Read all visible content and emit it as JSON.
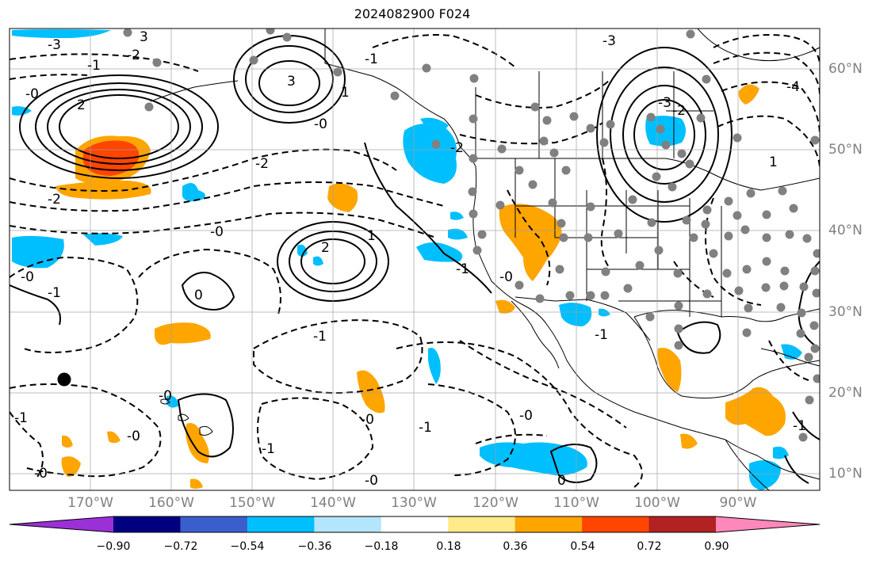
{
  "title": "2024082900 F024",
  "lon_labels": [
    "170°W",
    "160°W",
    "150°W",
    "140°W",
    "130°W",
    "120°W",
    "110°W",
    "100°W",
    "90°W"
  ],
  "lat_labels": [
    "60°N",
    "50°N",
    "40°N",
    "30°N",
    "20°N",
    "10°N"
  ],
  "colorbar": {
    "ticks": [
      "−0.90",
      "−0.72",
      "−0.54",
      "−0.36",
      "−0.18",
      "0.18",
      "0.36",
      "0.54",
      "0.72",
      "0.90"
    ],
    "colors": [
      "#9b30d9",
      "#000080",
      "#3a5fcd",
      "#00bfff",
      "#b3e5fc",
      "#ffffff",
      "#ffeb8a",
      "#ffa500",
      "#ff4500",
      "#b22222",
      "#ff88bb"
    ]
  },
  "contour_labels": [
    "-3",
    "3",
    "-1",
    "-2",
    "2",
    "-0",
    "-4",
    "-1",
    "1",
    "-3",
    "3",
    "-0",
    "-2",
    "-2",
    "-0",
    "-2",
    "2",
    "1",
    "-0",
    "-1",
    "0",
    "-3",
    "-2",
    "-1",
    "-0",
    "-0",
    "-1",
    "-1",
    "-0",
    "-0",
    "-1",
    "-0",
    "-1",
    "-0",
    "0",
    "-1",
    "1",
    "-1",
    "-0"
  ],
  "colors": {
    "land_outline": "#000000",
    "grid": "#a0a0a0",
    "dots": "#808080"
  }
}
